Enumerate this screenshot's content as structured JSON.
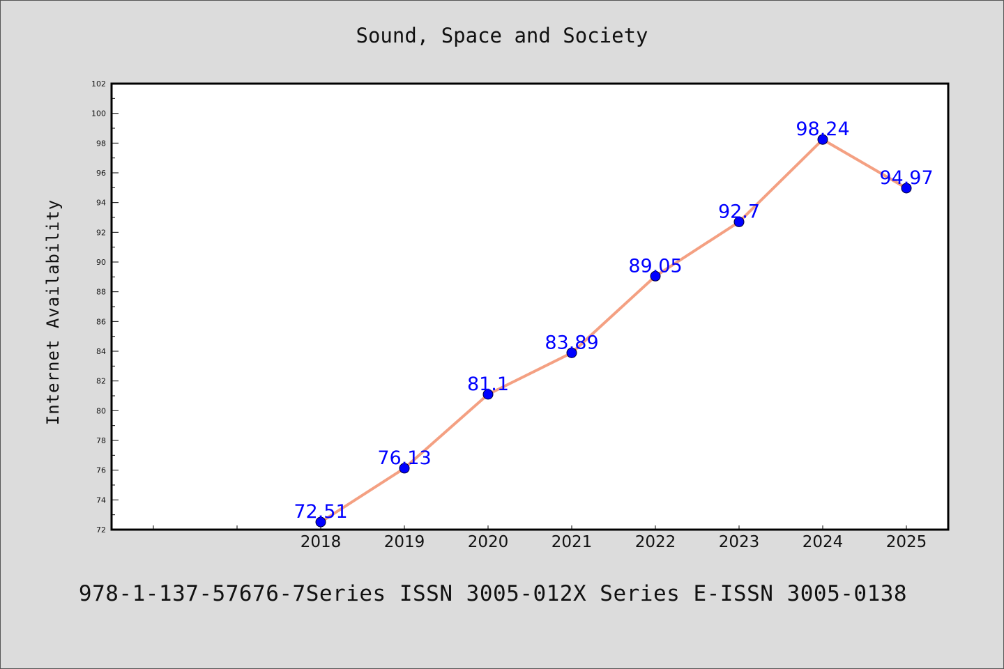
{
  "chart_data": {
    "type": "line",
    "title": "Sound, Space and Society",
    "xlabel": "",
    "ylabel": "Internet Availability",
    "categories": [
      "",
      "",
      "2018",
      "2019",
      "2020",
      "2021",
      "2022",
      "2023",
      "2024",
      "2025"
    ],
    "series": [
      {
        "values": [
          null,
          null,
          72.51,
          76.13,
          81.1,
          83.89,
          89.05,
          92.7,
          98.24,
          94.97
        ]
      }
    ],
    "data_labels": [
      "",
      "",
      "72.51",
      "76.13",
      "81.1",
      "83.89",
      "89.05",
      "92.7",
      "98.24",
      "94.97"
    ],
    "ylim": [
      72,
      102
    ],
    "yticks": [
      72,
      74,
      76,
      78,
      80,
      82,
      84,
      86,
      88,
      90,
      92,
      94,
      96,
      98,
      100,
      102
    ],
    "grid": false,
    "legend": "none",
    "colors": {
      "line": "#f4a082",
      "marker": "#0000ff",
      "label": "#0000ff"
    }
  },
  "footer": "978-1-137-57676-7Series ISSN 3005-012X Series E-ISSN 3005-0138"
}
